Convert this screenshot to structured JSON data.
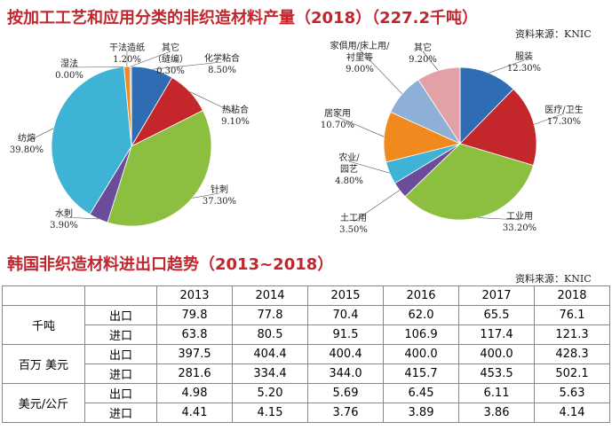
{
  "header": {
    "title": "按加工工艺和应用分类的非织造材料产量（2018）（227.2千吨）",
    "source": "资料来源：KNIC"
  },
  "chart_data": [
    {
      "type": "pie",
      "categories": [
        "化学粘合",
        "热粘合",
        "针刺",
        "水刺",
        "纺熔",
        "湿法",
        "干法造纸",
        "其它\n（缝编）"
      ],
      "values": [
        8.5,
        9.1,
        37.3,
        3.9,
        39.8,
        0,
        1.2,
        0.3
      ],
      "value_labels": [
        "8.50%",
        "9.10%",
        "37.30%",
        "3.90%",
        "39.80%",
        "0.00%",
        "1.20%",
        "0.30%"
      ],
      "colors": [
        "#2f6cb3",
        "#c3272b",
        "#8cbe3f",
        "#6b4c9a",
        "#3fb3d6",
        "#d9d9d9",
        "#f08a1f",
        "#8fb0d6"
      ]
    },
    {
      "type": "pie",
      "categories": [
        "服装",
        "医疗/卫生",
        "工业用",
        "土工用",
        "农业/\n园艺",
        "居家用",
        "家俱用/床上用/\n衬里等",
        "其它"
      ],
      "values": [
        12.3,
        17.3,
        33.2,
        3.5,
        4.8,
        10.7,
        9.0,
        9.2
      ],
      "value_labels": [
        "12.30%",
        "17.30%",
        "33.20%",
        "3.50%",
        "4.80%",
        "10.70%",
        "9.00%",
        "9.20%"
      ],
      "colors": [
        "#2f6cb3",
        "#c3272b",
        "#8cbe3f",
        "#6b4c9a",
        "#3fb3d6",
        "#f08a1f",
        "#8fb0d6",
        "#e2a1a6"
      ]
    }
  ],
  "section": {
    "title": "韩国非织造材料进出口趋势（2013~2018）",
    "source": "资料来源：KNIC"
  },
  "table": {
    "columns": [
      "2013",
      "2014",
      "2015",
      "2016",
      "2017",
      "2018"
    ],
    "groups": [
      "千吨",
      "百万 美元",
      "美元/公斤"
    ],
    "rows": [
      [
        "出口",
        "79.8",
        "77.8",
        "70.4",
        "62.0",
        "65.5",
        "76.1"
      ],
      [
        "进口",
        "63.8",
        "80.5",
        "91.5",
        "106.9",
        "117.4",
        "121.3"
      ],
      [
        "出口",
        "397.5",
        "404.4",
        "400.4",
        "400.0",
        "400.0",
        "428.3"
      ],
      [
        "进口",
        "281.6",
        "334.4",
        "344.0",
        "415.7",
        "453.5",
        "502.1"
      ],
      [
        "出口",
        "4.98",
        "5.20",
        "5.69",
        "6.45",
        "6.11",
        "5.63"
      ],
      [
        "进口",
        "4.41",
        "4.15",
        "3.76",
        "3.89",
        "3.86",
        "4.14"
      ]
    ]
  }
}
